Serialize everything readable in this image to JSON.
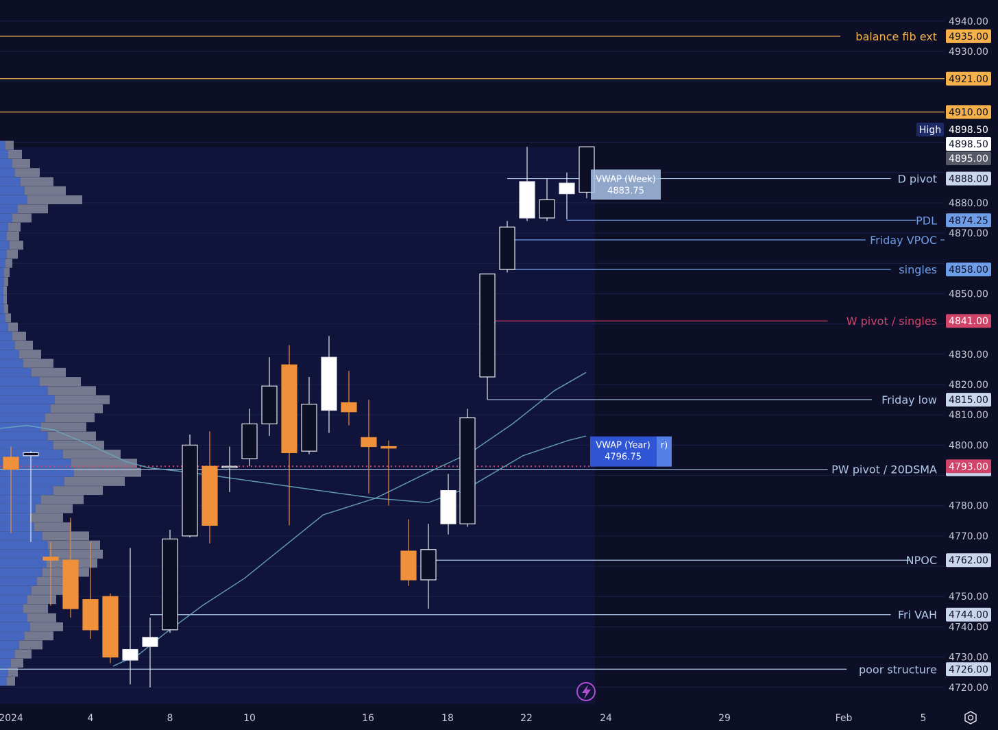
{
  "colors": {
    "background": "#0c0f26",
    "panel": "#10143a",
    "bull_candle": "#ffffff",
    "bear_candle": "#f0903a",
    "fib_level": "#f5b24a",
    "level_line": "#b0c8e8",
    "blue_label": "#6f9ee8",
    "pink_level": "#d0446a",
    "vwap_week_label": "#a9c2e6",
    "vwap_year_label": "#2f55d4",
    "ma_line": "#6aa6bf"
  },
  "icons": {
    "lightning": "lightning-icon",
    "settings": "gear-icon"
  },
  "chart_data": {
    "type": "candlestick",
    "symbol_hint": "ES",
    "price_axis": {
      "ticks": [
        "4940.00",
        "4930.00",
        "4880.00",
        "4870.00",
        "4850.00",
        "4830.00",
        "4820.00",
        "4810.00",
        "4800.00",
        "4780.00",
        "4770.00",
        "4750.00",
        "4740.00",
        "4730.00",
        "4720.00"
      ],
      "ylim": [
        4717,
        4944
      ]
    },
    "time_axis": {
      "labels": [
        {
          "text": "2024",
          "date": "2024-01-01"
        },
        {
          "text": "4",
          "date": "2024-01-04"
        },
        {
          "text": "8",
          "date": "2024-01-08"
        },
        {
          "text": "10",
          "date": "2024-01-10"
        },
        {
          "text": "16",
          "date": "2024-01-16"
        },
        {
          "text": "18",
          "date": "2024-01-18"
        },
        {
          "text": "22",
          "date": "2024-01-22"
        },
        {
          "text": "24",
          "date": "2024-01-24"
        },
        {
          "text": "29",
          "date": "2024-01-29"
        },
        {
          "text": "Feb",
          "date": "2024-02-01"
        },
        {
          "text": "5",
          "date": "2024-02-05"
        }
      ]
    },
    "candles": [
      {
        "date": "2024-01-02",
        "open": 4796.0,
        "high": 4799.5,
        "low": 4771.0,
        "close": 4792.0,
        "interval": "4h"
      },
      {
        "date": "2024-01-02",
        "open": 4796.5,
        "high": 4798.0,
        "low": 4768.0,
        "close": 4797.5,
        "interval": "4h"
      },
      {
        "date": "2024-01-03",
        "open": 4763.0,
        "high": 4768.0,
        "low": 4747.0,
        "close": 4762.0,
        "interval": "4h"
      },
      {
        "date": "2024-01-03",
        "open": 4762.0,
        "high": 4776.0,
        "low": 4743.0,
        "close": 4746.0,
        "interval": "4h"
      },
      {
        "date": "2024-01-04",
        "open": 4749.0,
        "high": 4768.0,
        "low": 4736.0,
        "close": 4739.0,
        "interval": "4h"
      },
      {
        "date": "2024-01-04",
        "open": 4750.0,
        "high": 4751.0,
        "low": 4728.0,
        "close": 4730.0,
        "interval": "4h"
      },
      {
        "date": "2024-01-05",
        "open": 4729.0,
        "high": 4766.0,
        "low": 4721.0,
        "close": 4732.5,
        "interval": "4h"
      },
      {
        "date": "2024-01-05",
        "open": 4733.5,
        "high": 4743.0,
        "low": 4720.0,
        "close": 4736.5,
        "interval": "4h"
      },
      {
        "date": "2024-01-08",
        "open": 4739.0,
        "high": 4772.0,
        "low": 4738.0,
        "close": 4769.0,
        "interval": "4h"
      },
      {
        "date": "2024-01-08",
        "open": 4770.0,
        "high": 4803.5,
        "low": 4769.5,
        "close": 4800.0,
        "interval": "4h"
      },
      {
        "date": "2024-01-09",
        "open": 4793.0,
        "high": 4804.5,
        "low": 4767.5,
        "close": 4773.5,
        "interval": "4h"
      },
      {
        "date": "2024-01-09",
        "open": 4792.5,
        "high": 4799.5,
        "low": 4784.5,
        "close": 4793.0,
        "interval": "4h"
      },
      {
        "date": "2024-01-10",
        "open": 4795.5,
        "high": 4812.0,
        "low": 4793.0,
        "close": 4807.0,
        "interval": "4h"
      },
      {
        "date": "2024-01-10",
        "open": 4807.0,
        "high": 4829.0,
        "low": 4803.0,
        "close": 4819.5,
        "interval": "4h"
      },
      {
        "date": "2024-01-11",
        "open": 4826.5,
        "high": 4833.0,
        "low": 4773.5,
        "close": 4797.5,
        "interval": "4h"
      },
      {
        "date": "2024-01-11",
        "open": 4798.0,
        "high": 4822.5,
        "low": 4797.0,
        "close": 4813.5,
        "interval": "4h"
      },
      {
        "date": "2024-01-12",
        "open": 4811.5,
        "high": 4836.0,
        "low": 4804.0,
        "close": 4829.0,
        "interval": "4h"
      },
      {
        "date": "2024-01-12",
        "open": 4814.0,
        "high": 4824.5,
        "low": 4806.5,
        "close": 4811.0,
        "interval": "4h"
      },
      {
        "date": "2024-01-16",
        "open": 4802.5,
        "high": 4815.0,
        "low": 4784.0,
        "close": 4799.5,
        "interval": "4h"
      },
      {
        "date": "2024-01-16",
        "open": 4799.5,
        "high": 4801.5,
        "low": 4780.0,
        "close": 4799.0,
        "interval": "4h"
      },
      {
        "date": "2024-01-17",
        "open": 4765.0,
        "high": 4775.5,
        "low": 4753.5,
        "close": 4755.5,
        "interval": "4h"
      },
      {
        "date": "2024-01-17",
        "open": 4755.5,
        "high": 4774.0,
        "low": 4746.0,
        "close": 4765.5,
        "interval": "4h"
      },
      {
        "date": "2024-01-18",
        "open": 4774.0,
        "high": 4790.5,
        "low": 4770.5,
        "close": 4785.0,
        "interval": "4h"
      },
      {
        "date": "2024-01-18",
        "open": 4774.0,
        "high": 4812.0,
        "low": 4773.0,
        "close": 4809.0,
        "interval": "4h"
      },
      {
        "date": "2024-01-19",
        "open": 4822.5,
        "high": 4856.5,
        "low": 4815.0,
        "close": 4856.5,
        "interval": "4h"
      },
      {
        "date": "2024-01-19",
        "open": 4858.0,
        "high": 4874.0,
        "low": 4857.0,
        "close": 4872.0,
        "interval": "4h"
      },
      {
        "date": "2024-01-22",
        "open": 4875.0,
        "high": 4898.5,
        "low": 4874.0,
        "close": 4887.0,
        "interval": "4h"
      },
      {
        "date": "2024-01-22",
        "open": 4875.0,
        "high": 4888.0,
        "low": 4874.0,
        "close": 4881.0,
        "interval": "4h"
      },
      {
        "date": "2024-01-23",
        "open": 4883.0,
        "high": 4890.0,
        "low": 4874.5,
        "close": 4886.5,
        "interval": "4h"
      },
      {
        "date": "2024-01-23",
        "open": 4883.5,
        "high": 4898.5,
        "low": 4881.5,
        "close": 4898.5,
        "interval": "4h"
      }
    ],
    "horizontal_levels": [
      {
        "label": "balance fib ext",
        "price": "4935.00",
        "color": "#f5b24a"
      },
      {
        "label": "",
        "price": "4921.00",
        "color": "#f5b24a"
      },
      {
        "label": "",
        "price": "4910.00",
        "color": "#f5b24a"
      },
      {
        "label": "D pivot",
        "price": "4888.00",
        "color": "#b0c8e8"
      },
      {
        "label": "PDL",
        "price": "4874.25",
        "color": "#6f9ee8"
      },
      {
        "label": "Friday VPOC",
        "price": "4867.75",
        "color": "#6f9ee8"
      },
      {
        "label": "singles",
        "price": "4858.00",
        "color": "#6f9ee8"
      },
      {
        "label": "W pivot / singles",
        "price": "4841.00",
        "color": "#d0446a"
      },
      {
        "label": "Friday low",
        "price": "4815.00",
        "color": "#b0c8e8"
      },
      {
        "label": "PW pivot / 20DSMA",
        "price": "4792.00",
        "color": "#b0c8e8"
      },
      {
        "label": "NPOC",
        "price": "4762.00",
        "color": "#b0c8e8"
      },
      {
        "label": "Fri VAH",
        "price": "4744.00",
        "color": "#b0c8e8"
      },
      {
        "label": "poor structure",
        "price": "4726.00",
        "color": "#b0c8e8"
      }
    ],
    "price_tags": [
      {
        "text": "4898.50",
        "prefix": "High",
        "price": 4898.5,
        "style": "high"
      },
      {
        "text": "4898.50",
        "price": 4898.5,
        "style": "last"
      },
      {
        "text": "4895.00",
        "price": 4895.0,
        "style": "grey"
      },
      {
        "text": "4793.00",
        "price": 4793.0,
        "style": "pink"
      }
    ],
    "vwap_labels": [
      {
        "name": "VWAP (Week)",
        "value": "4883.75"
      },
      {
        "name": "VWAP (Year)",
        "value": "4796.75"
      }
    ],
    "moving_averages": [
      {
        "points": [
          [
            4.0,
            4727.0
          ],
          [
            4.5,
            4731.0
          ],
          [
            5.0,
            4738.0
          ],
          [
            5.7,
            4747.0
          ],
          [
            6.5,
            4756.0
          ],
          [
            7.5,
            4770.0
          ],
          [
            8.0,
            4777.0
          ],
          [
            9.0,
            4782.5
          ],
          [
            10.0,
            4791.0
          ],
          [
            10.8,
            4797.5
          ],
          [
            11.6,
            4807.0
          ],
          [
            12.4,
            4818.0
          ],
          [
            13.0,
            4824.0
          ]
        ]
      },
      {
        "points": [
          [
            0.0,
            4805.5
          ],
          [
            0.6,
            4806.5
          ],
          [
            1.2,
            4805.0
          ],
          [
            2.0,
            4800.0
          ],
          [
            2.8,
            4794.5
          ],
          [
            3.3,
            4792.5
          ],
          [
            4.2,
            4791.0
          ],
          [
            5.4,
            4788.5
          ],
          [
            6.6,
            4786.0
          ],
          [
            8.3,
            4782.5
          ],
          [
            9.5,
            4781.0
          ],
          [
            10.4,
            4786.0
          ],
          [
            11.6,
            4796.5
          ],
          [
            12.6,
            4801.5
          ],
          [
            13.0,
            4803.0
          ]
        ]
      }
    ],
    "volume_profile": {
      "note_rows": [
        {
          "price": 4899,
          "total": 20,
          "inner": 8
        },
        {
          "price": 4896,
          "total": 32,
          "inner": 12
        },
        {
          "price": 4893,
          "total": 44,
          "inner": 18
        },
        {
          "price": 4890,
          "total": 58,
          "inner": 22
        },
        {
          "price": 4887,
          "total": 78,
          "inner": 30
        },
        {
          "price": 4884,
          "total": 96,
          "inner": 36
        },
        {
          "price": 4881,
          "total": 120,
          "inner": 40
        },
        {
          "price": 4878,
          "total": 70,
          "inner": 26
        },
        {
          "price": 4875,
          "total": 46,
          "inner": 18
        },
        {
          "price": 4872,
          "total": 30,
          "inner": 12
        },
        {
          "price": 4869,
          "total": 28,
          "inner": 10
        },
        {
          "price": 4866,
          "total": 34,
          "inner": 14
        },
        {
          "price": 4863,
          "total": 26,
          "inner": 10
        },
        {
          "price": 4860,
          "total": 18,
          "inner": 8
        },
        {
          "price": 4857,
          "total": 14,
          "inner": 6
        },
        {
          "price": 4854,
          "total": 12,
          "inner": 6
        },
        {
          "price": 4851,
          "total": 10,
          "inner": 5
        },
        {
          "price": 4848,
          "total": 10,
          "inner": 5
        },
        {
          "price": 4845,
          "total": 12,
          "inner": 6
        },
        {
          "price": 4842,
          "total": 16,
          "inner": 8
        },
        {
          "price": 4839,
          "total": 26,
          "inner": 12
        },
        {
          "price": 4836,
          "total": 38,
          "inner": 18
        },
        {
          "price": 4833,
          "total": 48,
          "inner": 22
        },
        {
          "price": 4830,
          "total": 60,
          "inner": 28
        },
        {
          "price": 4827,
          "total": 78,
          "inner": 34
        },
        {
          "price": 4824,
          "total": 96,
          "inner": 46
        },
        {
          "price": 4821,
          "total": 118,
          "inner": 58
        },
        {
          "price": 4818,
          "total": 140,
          "inner": 70
        },
        {
          "price": 4815,
          "total": 160,
          "inner": 80
        },
        {
          "price": 4812,
          "total": 150,
          "inner": 74
        },
        {
          "price": 4809,
          "total": 138,
          "inner": 66
        },
        {
          "price": 4806,
          "total": 126,
          "inner": 60
        },
        {
          "price": 4803,
          "total": 140,
          "inner": 70
        },
        {
          "price": 4800,
          "total": 152,
          "inner": 78
        },
        {
          "price": 4797,
          "total": 176,
          "inner": 92
        },
        {
          "price": 4794,
          "total": 200,
          "inner": 104
        },
        {
          "price": 4791,
          "total": 206,
          "inner": 108
        },
        {
          "price": 4788,
          "total": 182,
          "inner": 94
        },
        {
          "price": 4785,
          "total": 150,
          "inner": 78
        },
        {
          "price": 4782,
          "total": 122,
          "inner": 60
        },
        {
          "price": 4779,
          "total": 106,
          "inner": 52
        },
        {
          "price": 4776,
          "total": 92,
          "inner": 44
        },
        {
          "price": 4773,
          "total": 104,
          "inner": 50
        },
        {
          "price": 4770,
          "total": 130,
          "inner": 62
        },
        {
          "price": 4767,
          "total": 146,
          "inner": 70
        },
        {
          "price": 4764,
          "total": 150,
          "inner": 72
        },
        {
          "price": 4761,
          "total": 142,
          "inner": 68
        },
        {
          "price": 4758,
          "total": 130,
          "inner": 62
        },
        {
          "price": 4755,
          "total": 112,
          "inner": 54
        },
        {
          "price": 4752,
          "total": 96,
          "inner": 46
        },
        {
          "price": 4749,
          "total": 82,
          "inner": 40
        },
        {
          "price": 4746,
          "total": 70,
          "inner": 34
        },
        {
          "price": 4743,
          "total": 82,
          "inner": 40
        },
        {
          "price": 4740,
          "total": 92,
          "inner": 44
        },
        {
          "price": 4737,
          "total": 78,
          "inner": 36
        },
        {
          "price": 4734,
          "total": 62,
          "inner": 28
        },
        {
          "price": 4731,
          "total": 46,
          "inner": 22
        },
        {
          "price": 4728,
          "total": 34,
          "inner": 16
        },
        {
          "price": 4725,
          "total": 26,
          "inner": 12
        },
        {
          "price": 4722,
          "total": 22,
          "inner": 10
        }
      ]
    }
  }
}
